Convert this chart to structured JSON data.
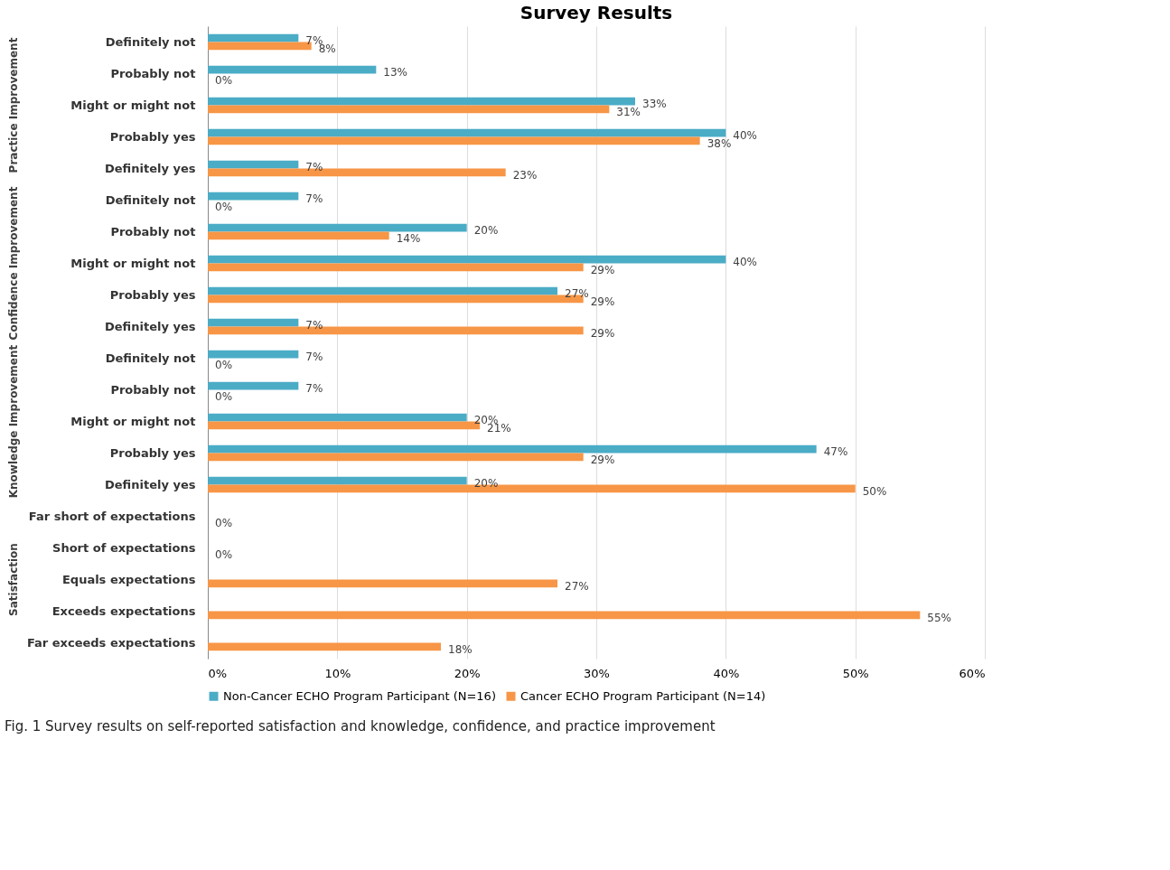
{
  "chart_data": {
    "type": "bar",
    "orientation": "horizontal",
    "title": "Survey Results",
    "categories": [
      "Definitely not",
      "Probably not",
      "Might or might not",
      "Probably yes",
      "Definitely yes",
      "Definitely not",
      "Probably not",
      "Might or might not",
      "Probably yes",
      "Definitely yes",
      "Definitely not",
      "Probably not",
      "Might or might not",
      "Probably yes",
      "Definitely yes",
      "Far short of expectations",
      "Short of expectations",
      "Equals expectations",
      "Exceeds expectations",
      "Far exceeds expectations"
    ],
    "series": [
      {
        "name": "Non-Cancer ECHO Program Participant (N=16)",
        "color": "#4bacc6",
        "values": [
          7,
          13,
          33,
          40,
          7,
          7,
          20,
          40,
          27,
          7,
          7,
          7,
          20,
          47,
          20,
          null,
          null,
          null,
          null,
          null
        ],
        "value_labels": [
          "7%",
          "13%",
          "33%",
          "40%",
          "7%",
          "7%",
          "20%",
          "40%",
          "27%",
          "7%",
          "7%",
          "7%",
          "20%",
          "47%",
          "20%",
          null,
          null,
          null,
          null,
          null
        ]
      },
      {
        "name": "Cancer ECHO Program Participant (N=14)",
        "color": "#f79646",
        "values": [
          8,
          0,
          31,
          38,
          23,
          0,
          14,
          29,
          29,
          29,
          0,
          0,
          21,
          29,
          50,
          0,
          0,
          27,
          55,
          18
        ],
        "value_labels": [
          "8%",
          "0%",
          "31%",
          "38%",
          "23%",
          "0%",
          "14%",
          "29%",
          "29%",
          "29%",
          "0%",
          "0%",
          "21%",
          "29%",
          "50%",
          "0%",
          "0%",
          "27%",
          "55%",
          "18%"
        ]
      }
    ],
    "xlim": [
      0,
      60
    ],
    "xticks": [
      {
        "value": 0,
        "label": "0%"
      },
      {
        "value": 10,
        "label": "10%"
      },
      {
        "value": 20,
        "label": "20%"
      },
      {
        "value": 30,
        "label": "30%"
      },
      {
        "value": 40,
        "label": "40%"
      },
      {
        "value": 50,
        "label": "50%"
      },
      {
        "value": 60,
        "label": "60%"
      }
    ],
    "grid": "x",
    "legend": "bottom",
    "annotations": [
      "Practice Improvement",
      "Confidence Improvement",
      "Knowledge Improvement",
      "Satisfaction",
      "Fig. 1  Survey results on self-reported satisfaction and knowledge, confidence, and practice improvement"
    ]
  }
}
